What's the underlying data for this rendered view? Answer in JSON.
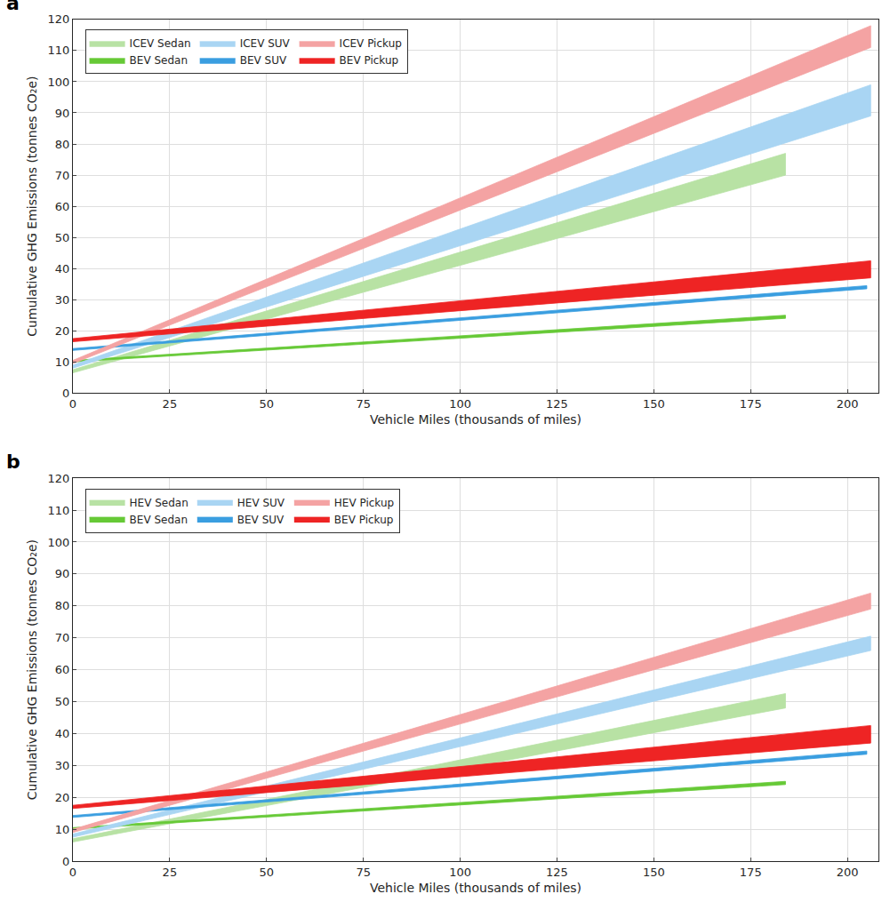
{
  "chart_data": [
    {
      "type": "band",
      "label": "a",
      "x_label": "Vehicle Miles (thousands of miles)",
      "y_label": "Cumulative GHG Emissions (tonnes CO₂e)",
      "xlim": [
        0,
        208
      ],
      "xticks": [
        0,
        25,
        50,
        75,
        100,
        125,
        150,
        175,
        200
      ],
      "ylim": [
        0,
        120
      ],
      "yticks": [
        0,
        10,
        20,
        30,
        40,
        50,
        60,
        70,
        80,
        90,
        100,
        110,
        120
      ],
      "grid": true,
      "legend": "upper left",
      "series": [
        {
          "name": "ICEV Sedan",
          "color": "#b8e2a4",
          "x": [
            0,
            184
          ],
          "values": [
            6.5,
            70
          ],
          "upper": [
            7.5,
            77
          ]
        },
        {
          "name": "BEV Sedan",
          "color": "#66c936",
          "x": [
            0,
            184
          ],
          "values": [
            10,
            24
          ],
          "upper": [
            10.5,
            25
          ]
        },
        {
          "name": "ICEV SUV",
          "color": "#a9d5f3",
          "x": [
            0,
            206
          ],
          "values": [
            8,
            89
          ],
          "upper": [
            9,
            99
          ]
        },
        {
          "name": "BEV SUV",
          "color": "#3a9ee0",
          "x": [
            0,
            205
          ],
          "values": [
            13.7,
            33.5
          ],
          "upper": [
            14.3,
            34.5
          ]
        },
        {
          "name": "ICEV Pickup",
          "color": "#f4a3a3",
          "x": [
            0,
            206
          ],
          "values": [
            9.5,
            111
          ],
          "upper": [
            10.5,
            118
          ]
        },
        {
          "name": "BEV Pickup",
          "color": "#ee2424",
          "x": [
            0,
            206
          ],
          "values": [
            16.5,
            37
          ],
          "upper": [
            17.5,
            42.5
          ]
        }
      ]
    },
    {
      "type": "band",
      "label": "b",
      "x_label": "Vehicle Miles (thousands of miles)",
      "y_label": "Cumulative GHG Emissions (tonnes CO₂e)",
      "xlim": [
        0,
        208
      ],
      "xticks": [
        0,
        25,
        50,
        75,
        100,
        125,
        150,
        175,
        200
      ],
      "ylim": [
        0,
        120
      ],
      "yticks": [
        0,
        10,
        20,
        30,
        40,
        50,
        60,
        70,
        80,
        90,
        100,
        110,
        120
      ],
      "grid": true,
      "legend": "upper left",
      "series": [
        {
          "name": "HEV Sedan",
          "color": "#b8e2a4",
          "x": [
            0,
            184
          ],
          "values": [
            6,
            48
          ],
          "upper": [
            7,
            52.5
          ]
        },
        {
          "name": "BEV Sedan",
          "color": "#66c936",
          "x": [
            0,
            184
          ],
          "values": [
            10,
            24
          ],
          "upper": [
            10.5,
            25
          ]
        },
        {
          "name": "HEV SUV",
          "color": "#a9d5f3",
          "x": [
            0,
            206
          ],
          "values": [
            7.5,
            66
          ],
          "upper": [
            8.5,
            70.5
          ]
        },
        {
          "name": "BEV SUV",
          "color": "#3a9ee0",
          "x": [
            0,
            205
          ],
          "values": [
            13.7,
            33.5
          ],
          "upper": [
            14.3,
            34.5
          ]
        },
        {
          "name": "HEV Pickup",
          "color": "#f4a3a3",
          "x": [
            0,
            206
          ],
          "values": [
            9,
            79
          ],
          "upper": [
            10,
            84
          ]
        },
        {
          "name": "BEV Pickup",
          "color": "#ee2424",
          "x": [
            0,
            206
          ],
          "values": [
            16.5,
            37
          ],
          "upper": [
            17.5,
            42.5
          ]
        }
      ]
    }
  ]
}
